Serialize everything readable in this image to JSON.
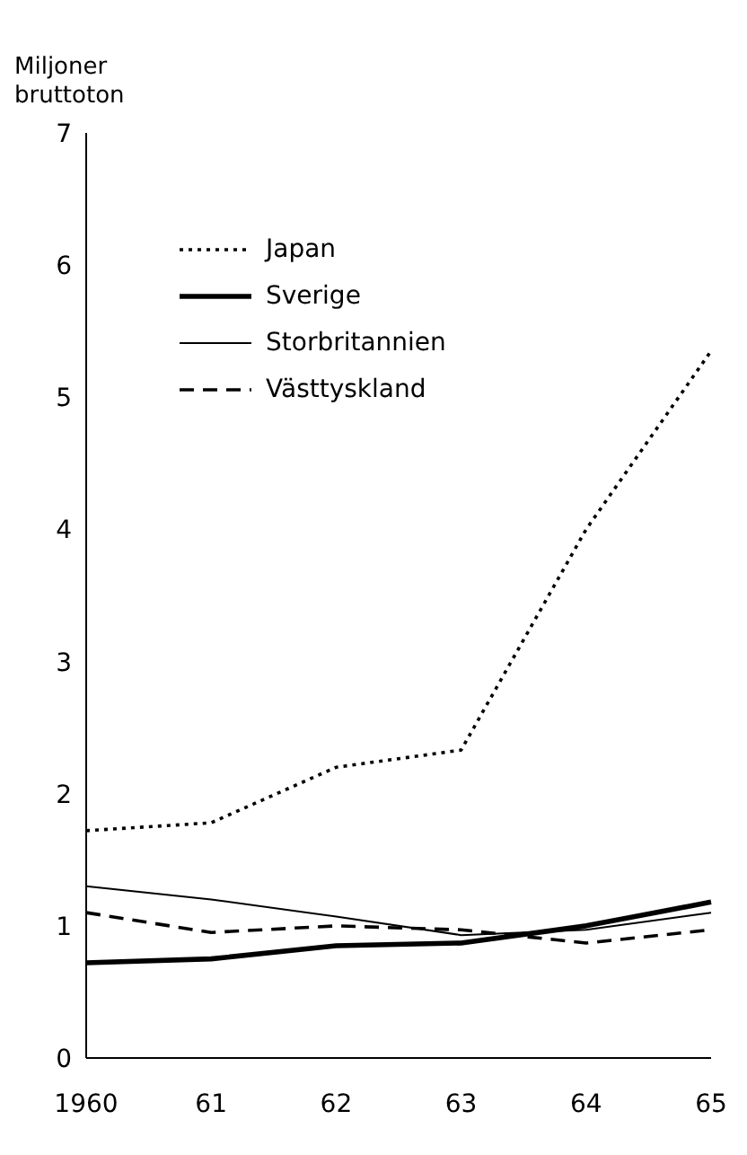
{
  "chart_data": {
    "type": "line",
    "ylabel": "Miljoner bruttoton",
    "categories": [
      "1960",
      "61",
      "62",
      "63",
      "64",
      "65"
    ],
    "ylim": [
      0,
      7
    ],
    "yticks": [
      0,
      1,
      2,
      3,
      4,
      5,
      6,
      7
    ],
    "grid": false,
    "legend": "top left",
    "marker": "none",
    "series": [
      {
        "name": "Japan",
        "color": "#000000",
        "line_style": "dotted",
        "values": [
          1.72,
          1.78,
          2.2,
          2.33,
          4.0,
          5.35
        ]
      },
      {
        "name": "Sverige",
        "color": "#000000",
        "line_style": "solid",
        "values": [
          0.72,
          0.75,
          0.85,
          0.87,
          1.0,
          1.18
        ]
      },
      {
        "name": "Storbritannien",
        "color": "#000000",
        "line_style": "solid",
        "values": [
          1.3,
          1.2,
          1.07,
          0.93,
          0.97,
          1.1
        ]
      },
      {
        "name": "Västtyskland",
        "color": "#000000",
        "line_style": "dashed",
        "values": [
          1.1,
          0.95,
          1.0,
          0.97,
          0.87,
          0.97
        ]
      }
    ]
  }
}
